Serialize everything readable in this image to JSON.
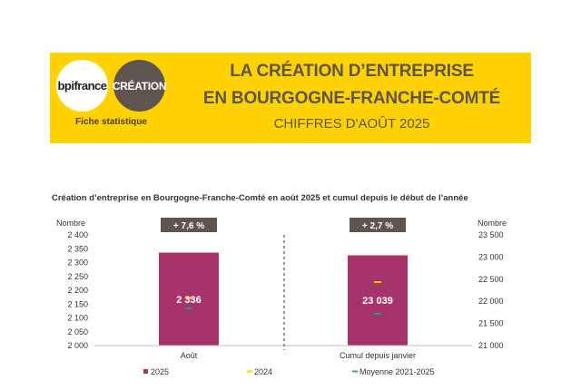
{
  "header": {
    "logo_bpifrance": "bpifrance",
    "logo_creation": "CRÉATION",
    "fiche": "Fiche statistique",
    "title_line1": "LA CRÉATION D’ENTREPRISE",
    "title_line2": "EN BOURGOGNE-FRANCHE-COMTÉ",
    "subtitle": "CHIFFRES D'AOÛT 2025",
    "banner_color": "#ffd200"
  },
  "chart_data": {
    "type": "bar",
    "title": "Création d’entreprise en Bourgogne-Franche-Comté en août 2025 et cumul depuis le début de l’année",
    "panels": [
      {
        "category": "Août",
        "axis": "left",
        "ylabel": "Nombre",
        "ylim": [
          2000,
          2400
        ],
        "ticks": [
          "2 400",
          "2 350",
          "2 300",
          "2 250",
          "2 200",
          "2 150",
          "2 100",
          "2 050",
          "2 000"
        ],
        "tick_values": [
          2400,
          2350,
          2300,
          2250,
          2200,
          2150,
          2100,
          2050,
          2000
        ],
        "value_2025": 2336,
        "value_2024": 2171,
        "value_avg": 2135,
        "label": "2 336",
        "change": "+ 7,6 %"
      },
      {
        "category": "Cumul depuis janvier",
        "axis": "right",
        "ylabel": "Nombre",
        "ylim": [
          21000,
          23500
        ],
        "ticks": [
          "23 500",
          "23 000",
          "22 500",
          "22 000",
          "21 500",
          "21 000"
        ],
        "tick_values": [
          23500,
          23000,
          22500,
          22000,
          21500,
          21000
        ],
        "value_2025": 23039,
        "value_2024": 22433,
        "value_avg": 21720,
        "label": "23 039",
        "change": "+ 2,7 %"
      }
    ],
    "legend": [
      {
        "name": "2025",
        "color": "#a6336a",
        "shape": "square"
      },
      {
        "name": "2024",
        "color": "#ffd200",
        "shape": "dash"
      },
      {
        "name": "Moyenne 2021-2025",
        "color": "#3aa58a",
        "shape": "dash"
      }
    ],
    "badge_color": "#5f5550",
    "bar_color": "#a6336a",
    "color_2024": "#ffc000",
    "color_avg": "#2e9a7d",
    "grid": false,
    "legend_position": "bottom"
  }
}
